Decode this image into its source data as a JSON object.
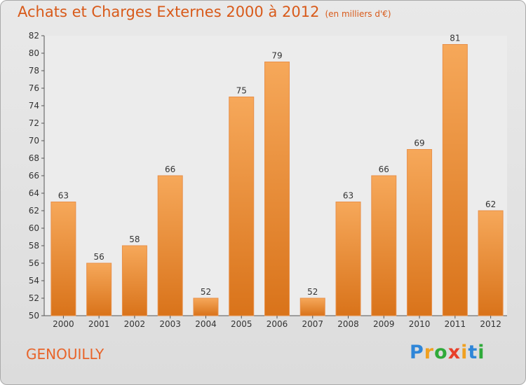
{
  "title": "Achats et Charges Externes 2000 à 2012",
  "subtitle": "(en milliers d'€)",
  "commune": "GENOUILLY",
  "logo": {
    "letters": [
      "P",
      "r",
      "o",
      "x",
      "i",
      "t",
      "i"
    ],
    "colors": [
      "#2f86d8",
      "#f0a020",
      "#2faa3a",
      "#e8402a",
      "#f0a020",
      "#2f86d8",
      "#2faa3a"
    ]
  },
  "colors": {
    "bar_light": "#f6a85a",
    "bar_dark": "#d9731a",
    "title": "#d85a1a"
  },
  "chart_data": {
    "type": "bar",
    "title": "Achats et Charges Externes 2000 à 2012",
    "categories": [
      "2000",
      "2001",
      "2002",
      "2003",
      "2004",
      "2005",
      "2006",
      "2007",
      "2008",
      "2009",
      "2010",
      "2011",
      "2012"
    ],
    "values": [
      63,
      56,
      58,
      66,
      52,
      75,
      79,
      52,
      63,
      66,
      69,
      81,
      62
    ],
    "ylim": [
      50,
      82
    ],
    "yticks": [
      50,
      52,
      54,
      56,
      58,
      60,
      62,
      64,
      66,
      68,
      70,
      72,
      74,
      76,
      78,
      80,
      82
    ],
    "grid": false,
    "xlabel": "",
    "ylabel": ""
  }
}
